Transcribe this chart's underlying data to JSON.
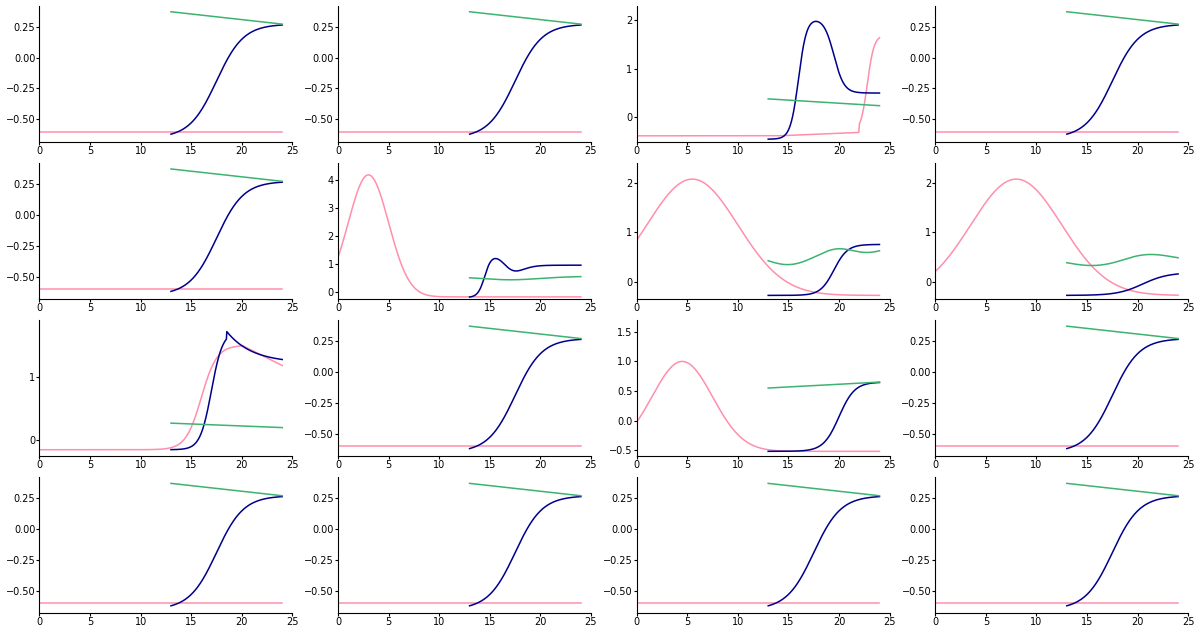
{
  "nrows": 4,
  "ncols": 4,
  "figsize": [
    12.0,
    6.33
  ],
  "dpi": 100,
  "blue_color": "#00008B",
  "green_color": "#3CB371",
  "pink_color": "#FF8FAB",
  "linewidth": 1.1,
  "xlim": [
    0,
    25
  ],
  "xticks": [
    0,
    5,
    10,
    15,
    20,
    25
  ],
  "subplots": [
    {
      "row": 0,
      "col": 0,
      "type": "standard",
      "ylim": [
        -0.68,
        0.42
      ],
      "yticks": [
        0.25,
        0.0,
        -0.25,
        -0.5
      ],
      "pink_flat": -0.6,
      "blue_x0": 17.5,
      "blue_k": 0.75,
      "blue_lo": -0.65,
      "blue_hi": 0.27,
      "gx0": 13,
      "gx1": 24,
      "gy0": 0.37,
      "gy1": 0.27
    },
    {
      "row": 0,
      "col": 1,
      "type": "standard",
      "ylim": [
        -0.68,
        0.42
      ],
      "yticks": [
        0.25,
        0.0,
        -0.25,
        -0.5
      ],
      "pink_flat": -0.6,
      "blue_x0": 17.5,
      "blue_k": 0.75,
      "blue_lo": -0.65,
      "blue_hi": 0.27,
      "gx0": 13,
      "gx1": 24,
      "gy0": 0.37,
      "gy1": 0.27
    },
    {
      "row": 0,
      "col": 2,
      "type": "peak_fall",
      "ylim": [
        -0.5,
        2.3
      ],
      "yticks": [
        2.0,
        1.0,
        0.0
      ]
    },
    {
      "row": 0,
      "col": 3,
      "type": "standard",
      "ylim": [
        -0.68,
        0.42
      ],
      "yticks": [
        0.25,
        0.0,
        -0.25,
        -0.5
      ],
      "pink_flat": -0.6,
      "blue_x0": 17.5,
      "blue_k": 0.75,
      "blue_lo": -0.65,
      "blue_hi": 0.27,
      "gx0": 13,
      "gx1": 24,
      "gy0": 0.37,
      "gy1": 0.27
    },
    {
      "row": 1,
      "col": 0,
      "type": "standard",
      "ylim": [
        -0.68,
        0.42
      ],
      "yticks": [
        0.25,
        0.0,
        -0.25,
        -0.5
      ],
      "pink_flat": -0.6,
      "blue_x0": 17.5,
      "blue_k": 0.75,
      "blue_lo": -0.65,
      "blue_hi": 0.27,
      "gx0": 13,
      "gx1": 24,
      "gy0": 0.37,
      "gy1": 0.27
    },
    {
      "row": 1,
      "col": 1,
      "type": "pink_bump_converge",
      "ylim": [
        -0.25,
        4.6
      ],
      "yticks": [
        4.0,
        3.0,
        2.0,
        1.0,
        0.0
      ]
    },
    {
      "row": 1,
      "col": 2,
      "type": "pink_wide_bump_blue_sigmoid",
      "ylim": [
        -0.35,
        2.4
      ],
      "yticks": [
        2.0,
        1.0,
        0.0
      ]
    },
    {
      "row": 1,
      "col": 3,
      "type": "pink_wide_bump_blue_slight",
      "ylim": [
        -0.35,
        2.4
      ],
      "yticks": [
        2.0,
        1.0,
        0.0
      ]
    },
    {
      "row": 2,
      "col": 0,
      "type": "both_sigmoid",
      "ylim": [
        -0.25,
        1.9
      ],
      "yticks": [
        1.0,
        0.0
      ]
    },
    {
      "row": 2,
      "col": 1,
      "type": "standard",
      "ylim": [
        -0.68,
        0.42
      ],
      "yticks": [
        0.25,
        0.0,
        -0.25,
        -0.5
      ],
      "pink_flat": -0.6,
      "blue_x0": 17.5,
      "blue_k": 0.75,
      "blue_lo": -0.65,
      "blue_hi": 0.27,
      "gx0": 13,
      "gx1": 24,
      "gy0": 0.37,
      "gy1": 0.27
    },
    {
      "row": 2,
      "col": 2,
      "type": "pink_early_bump",
      "ylim": [
        -0.6,
        1.7
      ],
      "yticks": [
        1.5,
        1.0,
        0.5,
        0.0,
        -0.5
      ]
    },
    {
      "row": 2,
      "col": 3,
      "type": "standard",
      "ylim": [
        -0.68,
        0.42
      ],
      "yticks": [
        0.25,
        0.0,
        -0.25,
        -0.5
      ],
      "pink_flat": -0.6,
      "blue_x0": 17.5,
      "blue_k": 0.75,
      "blue_lo": -0.65,
      "blue_hi": 0.27,
      "gx0": 13,
      "gx1": 24,
      "gy0": 0.37,
      "gy1": 0.27
    },
    {
      "row": 3,
      "col": 0,
      "type": "standard",
      "ylim": [
        -0.68,
        0.42
      ],
      "yticks": [
        0.25,
        0.0,
        -0.25,
        -0.5
      ],
      "pink_flat": -0.6,
      "blue_x0": 17.5,
      "blue_k": 0.75,
      "blue_lo": -0.65,
      "blue_hi": 0.27,
      "gx0": 13,
      "gx1": 24,
      "gy0": 0.37,
      "gy1": 0.27
    },
    {
      "row": 3,
      "col": 1,
      "type": "standard",
      "ylim": [
        -0.68,
        0.42
      ],
      "yticks": [
        0.25,
        0.0,
        -0.25,
        -0.5
      ],
      "pink_flat": -0.6,
      "blue_x0": 17.5,
      "blue_k": 0.75,
      "blue_lo": -0.65,
      "blue_hi": 0.27,
      "gx0": 13,
      "gx1": 24,
      "gy0": 0.37,
      "gy1": 0.27
    },
    {
      "row": 3,
      "col": 2,
      "type": "standard",
      "ylim": [
        -0.68,
        0.42
      ],
      "yticks": [
        0.25,
        0.0,
        -0.25,
        -0.5
      ],
      "pink_flat": -0.6,
      "blue_x0": 17.5,
      "blue_k": 0.75,
      "blue_lo": -0.65,
      "blue_hi": 0.27,
      "gx0": 13,
      "gx1": 24,
      "gy0": 0.37,
      "gy1": 0.27
    },
    {
      "row": 3,
      "col": 3,
      "type": "standard",
      "ylim": [
        -0.68,
        0.42
      ],
      "yticks": [
        0.25,
        0.0,
        -0.25,
        -0.5
      ],
      "pink_flat": -0.6,
      "blue_x0": 17.5,
      "blue_k": 0.75,
      "blue_lo": -0.65,
      "blue_hi": 0.27,
      "gx0": 13,
      "gx1": 24,
      "gy0": 0.37,
      "gy1": 0.27
    }
  ]
}
